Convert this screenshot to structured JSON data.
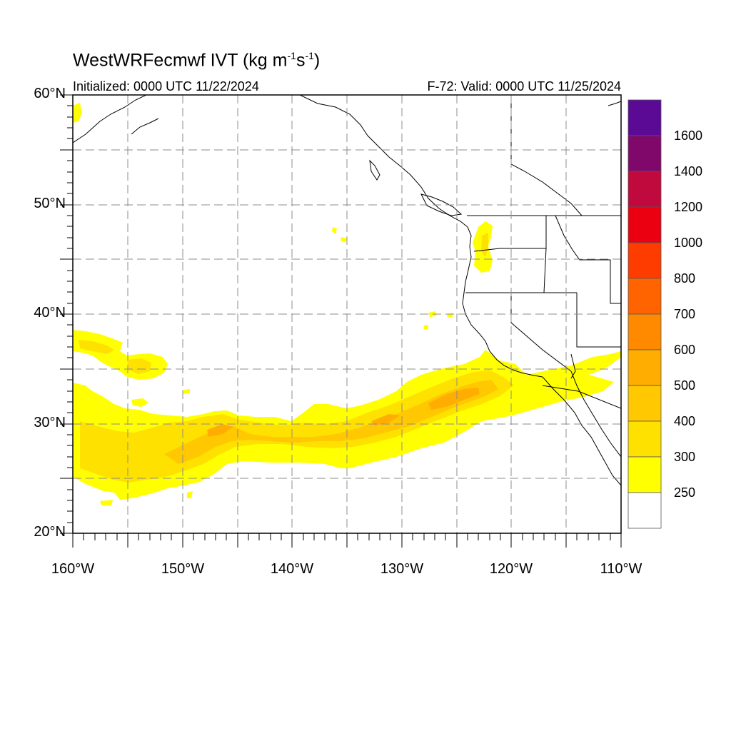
{
  "title": {
    "main": "WestWRFecmwf IVT (kg m",
    "sup1": "-1",
    "mid": "s",
    "sup2": "-1",
    "end": ")"
  },
  "subtitle_left": "Initialized: 0000 UTC 11/22/2024",
  "subtitle_right": "F-72: Valid: 0000 UTC 11/25/2024",
  "map": {
    "projection": "lat-lon",
    "lat_range": [
      20,
      60
    ],
    "lon_range": [
      -160,
      -110
    ],
    "gridlines": "dashed",
    "lat_labels": [
      "60°N",
      "50°N",
      "40°N",
      "30°N",
      "20°N"
    ],
    "lon_labels": [
      "160°W",
      "150°W",
      "140°W",
      "130°W",
      "120°W",
      "110°W"
    ]
  },
  "colorbar": {
    "labels": [
      "1600",
      "1400",
      "1200",
      "1000",
      "800",
      "700",
      "600",
      "500",
      "400",
      "300",
      "250"
    ],
    "colors": [
      "#5a0a95",
      "#80086a",
      "#c0093c",
      "#ea0010",
      "#ff3c00",
      "#ff6400",
      "#ff8a00",
      "#ffad00",
      "#ffc800",
      "#ffe100",
      "#ffff00",
      "#ffffff"
    ]
  },
  "field_colors": {
    "land_outline": "#000000",
    "ivt_250_300": "#ffff00",
    "ivt_300_400": "#ffe100",
    "ivt_400_500": "#ffc800",
    "ivt_500_600": "#ffad00"
  }
}
